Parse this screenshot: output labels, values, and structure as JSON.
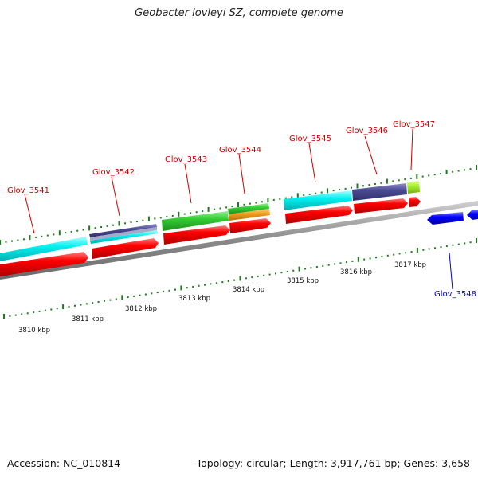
{
  "header": {
    "title": "Geobacter lovleyi SZ, complete genome"
  },
  "footer": {
    "accession": "Accession: NC_010814",
    "summary": "Topology: circular; Length: 3,917,761 bp; Genes: 3,658"
  },
  "colors": {
    "backbone": "#8c8c8c",
    "tick": "#1f7a1f",
    "label_forward": "#cc0000",
    "label_reverse": "#0000cc",
    "cds": "#ff0000",
    "reverse_cds": "#0000ff"
  },
  "kbp_labels": [
    "3810 kbp",
    "3811 kbp",
    "3812 kbp",
    "3813 kbp",
    "3814 kbp",
    "3815 kbp",
    "3816 kbp",
    "3817 kbp"
  ],
  "gene_labels": [
    {
      "text": "Glov_3541",
      "color": "#cc0000"
    },
    {
      "text": "Glov_3542",
      "color": "#cc0000"
    },
    {
      "text": "Glov_3543",
      "color": "#cc0000"
    },
    {
      "text": "Glov_3544",
      "color": "#cc0000"
    },
    {
      "text": "Glov_3545",
      "color": "#cc0000"
    },
    {
      "text": "Glov_3546",
      "color": "#cc0000"
    },
    {
      "text": "Glov_3547",
      "color": "#cc0000"
    },
    {
      "text": "Glov_3548",
      "color": "#0000cc"
    }
  ]
}
